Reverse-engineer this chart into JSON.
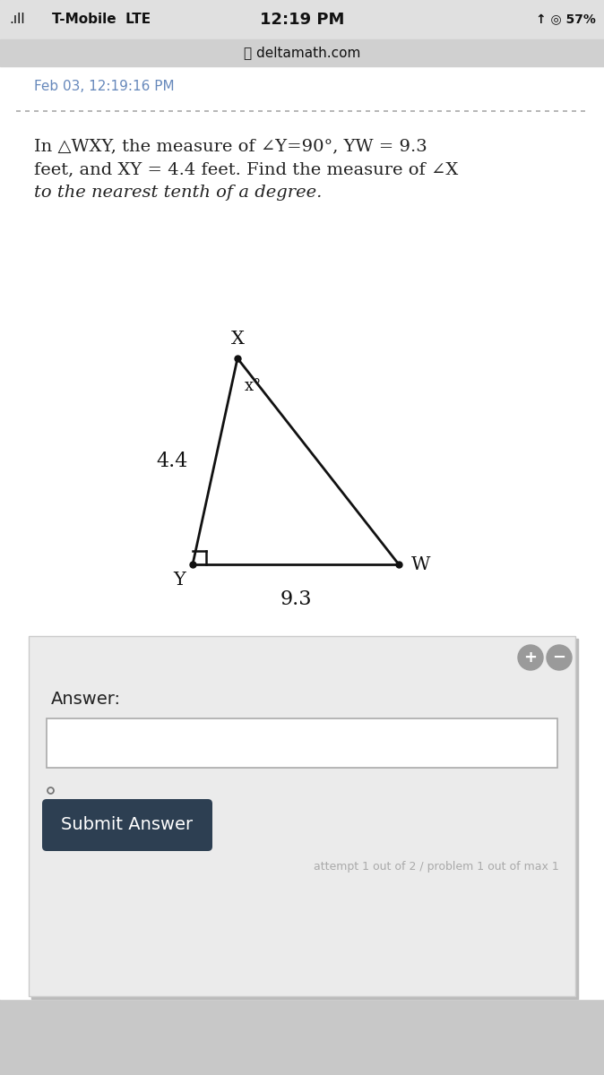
{
  "bg_outer": "#c8c8c8",
  "bg_page": "#f0f0f0",
  "white_bg": "#ffffff",
  "card_bg": "#ebebeb",
  "status_bar_bg": "#e0e0e0",
  "url_bar_bg": "#d0d0d0",
  "status_bar_text": "T-Mobile  LTE",
  "status_bar_time": "12:19 PM",
  "status_bar_battery": "57%",
  "url_bar_text": "deltamath.com",
  "timestamp": "Feb 03, 12:19:16 PM",
  "problem_text_line1": "In △WXY, the measure of ∠Y=90°, YW = 9.3",
  "problem_text_line2": "feet, and XY = 4.4 feet. Find the measure of ∠X",
  "problem_text_line3": "to the nearest tenth of a degree.",
  "triangle_label_X": "X",
  "triangle_label_Y": "Y",
  "triangle_label_W": "W",
  "triangle_angle_label": "x°",
  "triangle_side_XY": "4.4",
  "triangle_side_YW": "9.3",
  "answer_label": "Answer:",
  "submit_btn_text": "Submit Answer",
  "submit_btn_color": "#2d3f52",
  "attempt_text": "attempt 1 out of 2 / problem 1 out of max 1",
  "dashed_line_color": "#aaaaaa",
  "triangle_color": "#111111",
  "text_color": "#222222",
  "timestamp_color": "#6688bb",
  "problem_font_size": 14.0,
  "card_shadow_color": "#bbbbbb"
}
